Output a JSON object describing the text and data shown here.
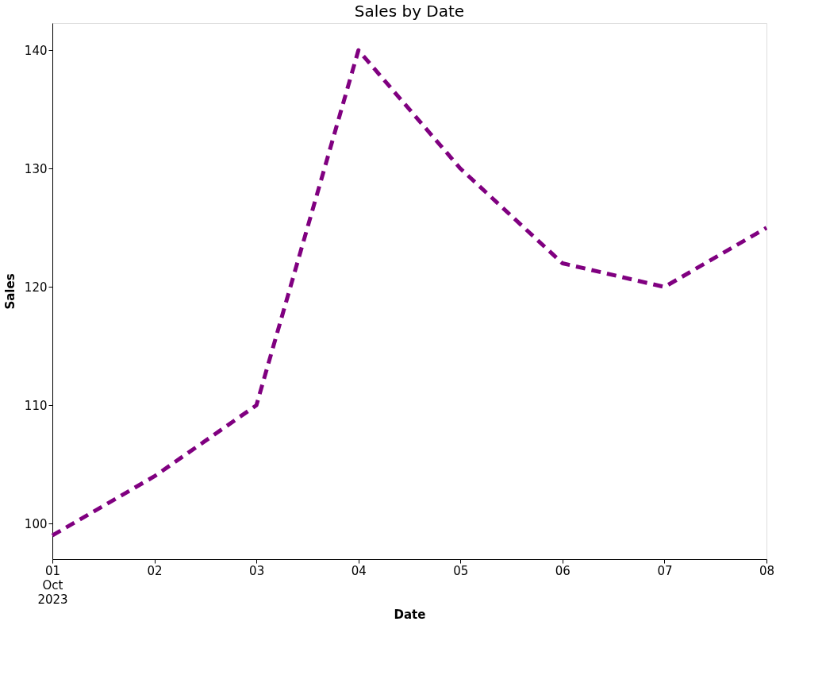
{
  "chart_data": {
    "type": "line",
    "title": "Sales by Date",
    "xlabel": "Date",
    "ylabel": "Sales",
    "x": [
      "2023-10-01",
      "2023-10-02",
      "2023-10-03",
      "2023-10-04",
      "2023-10-05",
      "2023-10-06",
      "2023-10-07",
      "2023-10-08"
    ],
    "series": [
      {
        "color": "#800080",
        "values": [
          99,
          104,
          110,
          140,
          130,
          122,
          120,
          125
        ]
      }
    ],
    "xlim": [
      "2023-10-01",
      "2023-10-08"
    ],
    "xticks": [
      {
        "value": "2023-10-01",
        "label": "01\nOct\n2023"
      },
      {
        "value": "2023-10-02",
        "label": "02"
      },
      {
        "value": "2023-10-03",
        "label": "03"
      },
      {
        "value": "2023-10-04",
        "label": "04"
      },
      {
        "value": "2023-10-05",
        "label": "05"
      },
      {
        "value": "2023-10-06",
        "label": "06"
      },
      {
        "value": "2023-10-07",
        "label": "07"
      },
      {
        "value": "2023-10-08",
        "label": "08"
      }
    ],
    "ylim": [
      97,
      142.3
    ],
    "yticks": [
      100,
      110,
      120,
      130,
      140
    ],
    "grid": false,
    "marker": "none",
    "line_style": "dashed"
  }
}
